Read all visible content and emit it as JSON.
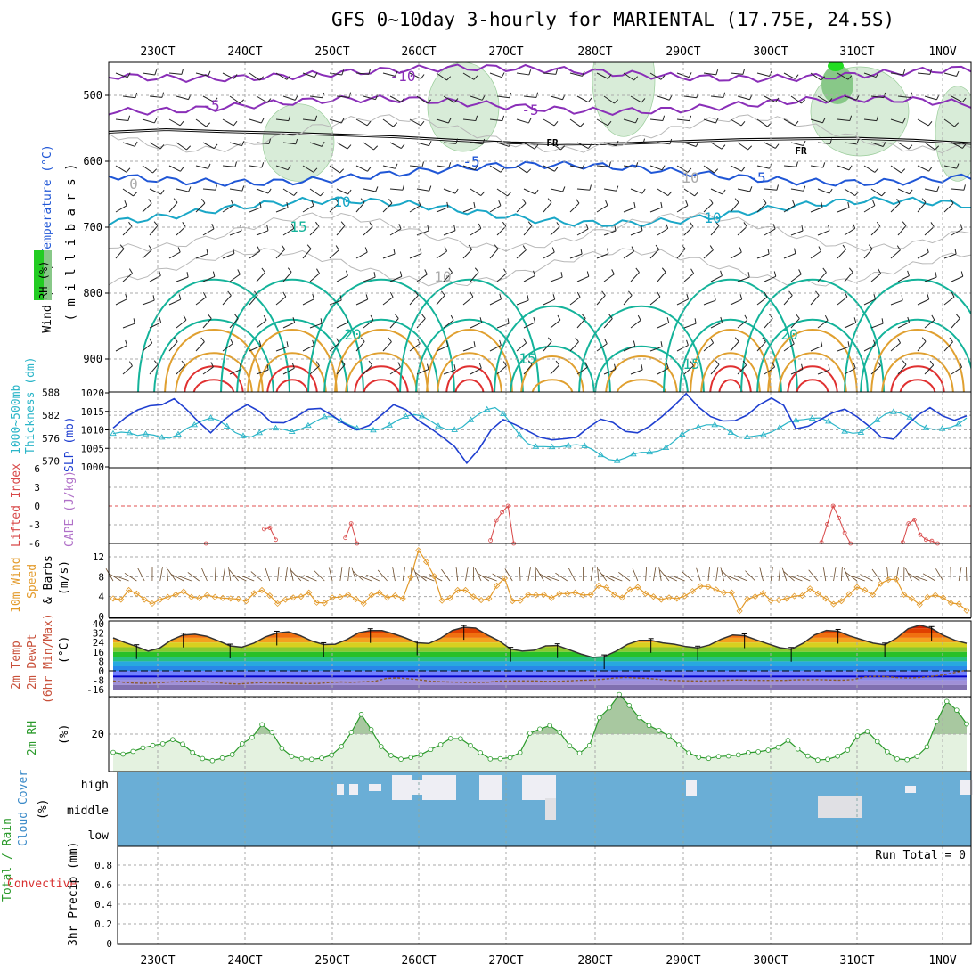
{
  "title": "GFS 0~10day 3-hourly for MARIENTAL (17.75E, 24.5S)",
  "colors": {
    "temp_cold": "#8a2fb8",
    "temp_blue": "#1f56d6",
    "temp_teal": "#1aa7c7",
    "temp_green": "#14b39a",
    "temp_orange": "#e0a030",
    "temp_red": "#e03030",
    "rh_fill": "#d8ecd8",
    "thickness": "#2bb5c8",
    "slp": "#1f3fd0",
    "lifted": "#d84848",
    "wind10": "#e39a2a",
    "rh2m": "#2b9a2b",
    "cloud": "#6aaed6",
    "cloud_gap": "#eeeef4"
  },
  "chart_data": {
    "type": "meteogram",
    "time_axis": {
      "tick_labels": [
        "23OCT",
        "24OCT",
        "25OCT",
        "26OCT",
        "27OCT",
        "28OCT",
        "29OCT",
        "30OCT",
        "31OCT",
        "1NOV"
      ],
      "start": "22OCT 12Z",
      "step_hours": 3
    },
    "panels": [
      {
        "id": "upper_air",
        "labels": [
          "Wind (m/s)",
          "Temperature (°C)",
          "RH (%)"
        ],
        "ylabel": "( m i l l i b a r s )",
        "yticks": [
          500,
          600,
          700,
          800,
          900
        ],
        "ylim": [
          1020,
          450
        ],
        "contour_labels": [
          "-10",
          "-5",
          "-5",
          "FR",
          "FR",
          "-5",
          "-5",
          "10",
          "10",
          "15",
          "20",
          "20",
          "15",
          "15",
          "10",
          "10",
          "0"
        ],
        "freezing_level_mb": [
          556,
          552,
          555,
          557,
          560,
          563,
          568,
          572,
          574,
          573,
          570,
          567,
          566,
          565,
          568,
          573
        ]
      },
      {
        "id": "thickness_slp",
        "labels": [
          "1000~500mb",
          "Thickness (dm)",
          "SLP (mb)"
        ],
        "yticks_left": [
          570,
          576,
          582,
          588
        ],
        "yticks_right": [
          1000,
          1005,
          1010,
          1015,
          1020
        ],
        "thickness_dm": [
          577.2,
          577.6,
          577.4,
          576.7,
          577.1,
          576.8,
          576.2,
          576.0,
          577.0,
          578.5,
          579.5,
          580.6,
          581.3,
          580.7,
          579.1,
          577.5,
          576.6,
          576.3,
          577.4,
          578.4,
          578.6,
          578.3,
          577.7,
          578.3,
          579.3,
          580.5,
          581.6,
          581.6,
          580.5,
          579.5,
          578.6,
          578.3,
          578.1,
          578.4,
          579.4,
          580.7,
          581.7,
          582.2,
          581.8,
          580.6,
          579.2,
          578.3,
          578.2,
          579.0,
          580.8,
          582.3,
          583.5,
          584.0,
          582.4,
          579.7,
          576.8,
          574.6,
          573.8,
          573.8,
          573.7,
          573.7,
          574.1,
          574.3,
          574.0,
          573.0,
          571.6,
          570.4,
          570.1,
          570.8,
          571.8,
          572.3,
          572.3,
          572.6,
          573.5,
          575.2,
          577.0,
          578.3,
          578.9,
          579.5,
          579.5,
          579.0,
          577.5,
          576.3,
          576.3,
          576.6,
          576.9,
          577.6,
          578.8,
          580.1,
          580.7,
          580.9,
          581.2,
          581.3,
          580.4,
          579.1,
          577.8,
          577.3,
          577.5,
          579.1,
          580.8,
          582.3,
          582.9,
          582.5,
          581.5,
          579.7,
          578.7,
          578.3,
          578.5,
          578.8,
          579.7,
          581.3
        ],
        "slp_mb": [
          1010.5,
          1013.3,
          1015.4,
          1016.5,
          1016.8,
          1018.4,
          1015.6,
          1012.2,
          1009.2,
          1012.5,
          1015.0,
          1016.8,
          1015.0,
          1012.0,
          1011.9,
          1013.5,
          1015.6,
          1015.8,
          1013.8,
          1011.6,
          1010.0,
          1011.2,
          1014.0,
          1016.8,
          1015.5,
          1012.6,
          1010.5,
          1008.1,
          1005.5,
          1001.0,
          1004.8,
          1010.0,
          1012.8,
          1011.4,
          1009.7,
          1008.0,
          1007.3,
          1007.6,
          1008.0,
          1010.7,
          1012.9,
          1012.0,
          1009.6,
          1009.2,
          1011.0,
          1013.6,
          1016.5,
          1019.8,
          1016.2,
          1013.6,
          1012.4,
          1012.5,
          1014.0,
          1016.8,
          1018.6,
          1016.6,
          1010.3,
          1011.0,
          1012.8,
          1014.6,
          1015.6,
          1013.6,
          1011.0,
          1008.0,
          1007.5,
          1011.0,
          1014.0,
          1016.0,
          1013.8,
          1012.6,
          1013.8
        ],
        "ylim_thickness": [
          567,
          588
        ],
        "ylim_slp": [
          998,
          1020
        ]
      },
      {
        "id": "lifted_cape",
        "labels": [
          "Lifted Index",
          "CAPE (J/kg)"
        ],
        "yticks": [
          -6,
          -3,
          0,
          3,
          6
        ],
        "ylim": [
          6,
          -6
        ],
        "lifted_index": [
          null,
          null,
          null,
          null,
          null,
          null,
          null,
          null,
          null,
          null,
          null,
          null,
          null,
          null,
          null,
          null,
          6.0,
          null,
          null,
          null,
          null,
          null,
          null,
          null,
          null,
          null,
          3.7,
          3.5,
          5.4,
          null,
          null,
          null,
          null,
          null,
          null,
          null,
          null,
          null,
          null,
          null,
          5.1,
          2.8,
          6.0,
          null,
          null,
          null,
          null,
          null,
          null,
          null,
          null,
          null,
          null,
          null,
          null,
          null,
          null,
          null,
          null,
          null,
          null,
          null,
          null,
          null,
          null,
          5.5,
          2.3,
          1.0,
          0.0,
          6.0,
          null,
          null,
          null,
          null,
          null,
          null,
          null,
          null,
          null,
          null,
          null,
          null,
          null,
          null,
          null,
          null,
          null,
          null,
          null,
          null,
          null,
          null,
          null,
          null,
          null,
          null,
          null,
          null,
          null,
          null,
          null,
          null,
          null,
          null,
          null,
          null,
          null,
          null,
          null,
          null,
          null,
          null,
          null,
          null,
          null,
          null,
          null,
          null,
          null,
          null,
          null,
          null,
          5.8,
          2.9,
          0.0,
          1.9,
          4.3,
          6.0,
          null,
          null,
          null,
          null,
          null,
          null,
          null,
          null,
          5.8,
          2.8,
          2.2,
          4.6,
          5.4,
          5.6,
          6.0,
          null,
          null,
          null,
          null,
          null
        ]
      },
      {
        "id": "wind10m",
        "labels": [
          "10m Wind",
          "Speed",
          "& Barbs",
          "(m/s)"
        ],
        "yticks": [
          0,
          4,
          8,
          12
        ],
        "ylim": [
          0,
          15
        ],
        "speed_ms": [
          3.6,
          3.4,
          5.3,
          4.6,
          3.4,
          2.6,
          3.4,
          3.9,
          4.4,
          5.0,
          3.9,
          3.7,
          4.3,
          3.9,
          3.7,
          3.6,
          3.5,
          3.1,
          4.7,
          5.3,
          4.2,
          2.6,
          3.4,
          3.8,
          4.0,
          4.8,
          2.8,
          2.7,
          3.8,
          3.9,
          4.4,
          3.5,
          2.6,
          4.3,
          4.8,
          3.8,
          4.2,
          3.6,
          7.9,
          13.3,
          11.0,
          8.1,
          3.2,
          3.7,
          5.3,
          5.3,
          4.0,
          3.3,
          3.6,
          6.2,
          7.7,
          3.1,
          3.2,
          4.4,
          4.3,
          4.4,
          3.7,
          4.6,
          4.6,
          4.8,
          4.3,
          4.4,
          6.2,
          5.8,
          4.4,
          3.8,
          5.4,
          5.9,
          4.6,
          4.0,
          3.4,
          3.8,
          3.6,
          4.1,
          5.1,
          6.1,
          6.0,
          5.4,
          4.8,
          4.8,
          1.1,
          3.5,
          4.0,
          4.7,
          3.2,
          3.3,
          3.6,
          4.1,
          4.2,
          5.6,
          4.6,
          3.6,
          2.5,
          3.1,
          4.5,
          5.9,
          5.3,
          4.4,
          6.6,
          7.4,
          7.5,
          4.4,
          3.6,
          2.4,
          3.9,
          4.3,
          3.8,
          2.7,
          2.5,
          1.2
        ]
      },
      {
        "id": "temp2m",
        "labels": [
          "2m Temp",
          "2m DewPt",
          "(6hr Min/Max)",
          "(°C)"
        ],
        "yticks": [
          -16,
          -8,
          0,
          8,
          16,
          24,
          32,
          40
        ],
        "ylim": [
          -16,
          40
        ],
        "temp_c": [
          27.9,
          24.0,
          20.6,
          16.7,
          19.4,
          26.2,
          30.4,
          31.0,
          29.3,
          25.4,
          21.1,
          20.0,
          23.3,
          28.6,
          32.1,
          33.1,
          29.9,
          25.3,
          22.3,
          22.6,
          26.6,
          32.3,
          34.2,
          34.1,
          31.3,
          27.9,
          23.8,
          23.2,
          27.6,
          34.2,
          36.9,
          36.2,
          30.4,
          25.4,
          18.4,
          16.7,
          17.4,
          21.1,
          21.4,
          17.9,
          14.3,
          11.4,
          12.0,
          16.6,
          22.4,
          25.8,
          25.8,
          23.7,
          22.6,
          20.5,
          19.4,
          21.8,
          26.8,
          30.4,
          29.8,
          26.3,
          22.9,
          19.6,
          18.3,
          23.3,
          30.4,
          34.3,
          33.6,
          29.6,
          26.5,
          23.5,
          22.0,
          27.7,
          35.7,
          38.8,
          36.0,
          30.1,
          25.9,
          23.3
        ],
        "dewpt_c": [
          -8.5,
          -9.8,
          -10.4,
          -10.6,
          -10.1,
          -9.4,
          -8.9,
          -8.6,
          -9.2,
          -9.9,
          -10.8,
          -11.2,
          -10.5,
          -10.0,
          -10.3,
          -10.2,
          -10.6,
          -10.8,
          -10.7,
          -9.9,
          -9.4,
          -9.7,
          -9.3,
          -8.8,
          -6.5,
          -6.0,
          -6.7,
          -7.7,
          -8.9,
          -9.3,
          -9.6,
          -9.8,
          -9.9,
          -9.6,
          -8.7,
          -8.6,
          -8.5,
          -8.5,
          -8.9,
          -8.8,
          -8.5,
          -8.0,
          -7.8,
          -7.2,
          -6.2,
          -5.6,
          -6.1,
          -6.4,
          -7.3,
          -8.1,
          -8.4,
          -8.5,
          -8.5,
          -8.3,
          -7.9,
          -7.7,
          -7.9,
          -8.1,
          -8.1,
          -8.1,
          -7.6,
          -7.6,
          -7.5,
          -7.8,
          -7.9,
          -7.5,
          -5.3,
          -4.6,
          -5.0,
          -5.8,
          -6.1,
          -5.6,
          -4.6,
          -3.4,
          -1.3,
          0.6
        ]
      },
      {
        "id": "rh2m",
        "labels": [
          "2m RH",
          "(%)"
        ],
        "yticks": [
          20
        ],
        "ylim": [
          0,
          45
        ],
        "rh_pct": [
          10.0,
          9.0,
          10.5,
          12.5,
          13.8,
          14.7,
          17.0,
          14.5,
          9.9,
          6.6,
          5.5,
          6.9,
          8.8,
          14.7,
          18.2,
          25.2,
          21.0,
          12.2,
          7.8,
          6.5,
          6.2,
          6.8,
          8.5,
          13.2,
          21.0,
          30.8,
          22.5,
          13.2,
          8.3,
          6.3,
          7.2,
          8.7,
          11.6,
          14.2,
          17.6,
          17.5,
          13.8,
          9.8,
          6.4,
          6.5,
          7.1,
          9.9,
          20.5,
          22.8,
          24.7,
          21.0,
          13.6,
          9.6,
          13.8,
          29.0,
          34.4,
          41.7,
          35.7,
          29.0,
          24.7,
          22.0,
          19.0,
          14.1,
          9.7,
          7.3,
          6.7,
          7.7,
          8.0,
          8.6,
          9.8,
          10.3,
          11.2,
          12.8,
          16.6,
          11.8,
          8.0,
          5.8,
          6.2,
          7.9,
          11.2,
          19.0,
          21.5,
          15.9,
          10.3,
          6.4,
          6.0,
          7.8,
          13.0,
          27.0,
          37.9,
          33.1,
          25.6
        ]
      },
      {
        "id": "cloud",
        "labels": [
          "Cloud Cover",
          "(%)"
        ],
        "levels": [
          "high",
          "middle",
          "low"
        ]
      },
      {
        "id": "precip",
        "labels": [
          "Total / Rain",
          "Convective",
          "3hr Precip (mm)"
        ],
        "yticks": [
          0,
          0.2,
          0.4,
          0.6,
          0.8
        ],
        "ylim": [
          0,
          1.0
        ],
        "run_total_label": "Run Total = 0",
        "precip_mm": []
      }
    ]
  }
}
